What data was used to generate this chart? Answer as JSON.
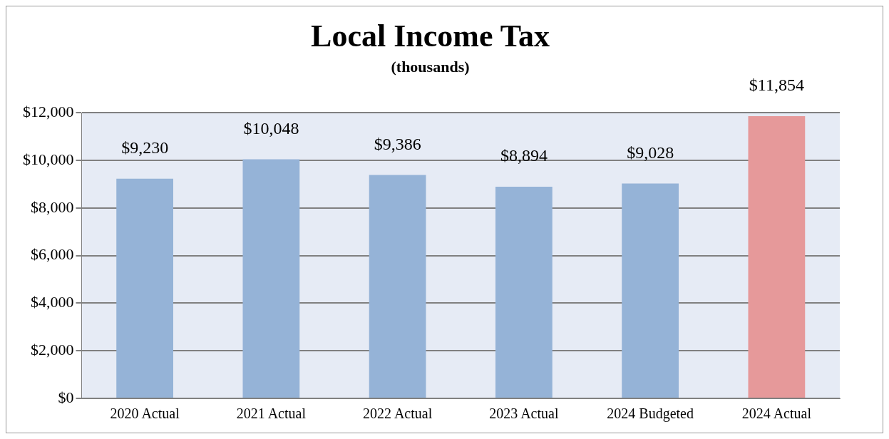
{
  "chart_data": {
    "type": "bar",
    "title": "Local Income Tax",
    "subtitle": "(thousands)",
    "categories": [
      "2020 Actual",
      "2021 Actual",
      "2022 Actual",
      "2023 Actual",
      "2024 Budgeted",
      "2024 Actual"
    ],
    "values": [
      9230,
      10048,
      9386,
      8894,
      9028,
      11854
    ],
    "colors": [
      "#95b3d7",
      "#95b3d7",
      "#95b3d7",
      "#95b3d7",
      "#95b3d7",
      "#e6999a"
    ],
    "value_labels": [
      "$9,230",
      "$10,048",
      "$9,386",
      "$8,894",
      "$9,028",
      "$11,854"
    ],
    "ylim": [
      0,
      12000
    ],
    "yticks": [
      {
        "value": 0,
        "label": "$0"
      },
      {
        "value": 2000,
        "label": "$2,000"
      },
      {
        "value": 4000,
        "label": "$4,000"
      },
      {
        "value": 6000,
        "label": "$6,000"
      },
      {
        "value": 8000,
        "label": "$8,000"
      },
      {
        "value": 10000,
        "label": "$10,000"
      },
      {
        "value": 12000,
        "label": "$12,000"
      }
    ],
    "grid": "y",
    "legend": false
  }
}
